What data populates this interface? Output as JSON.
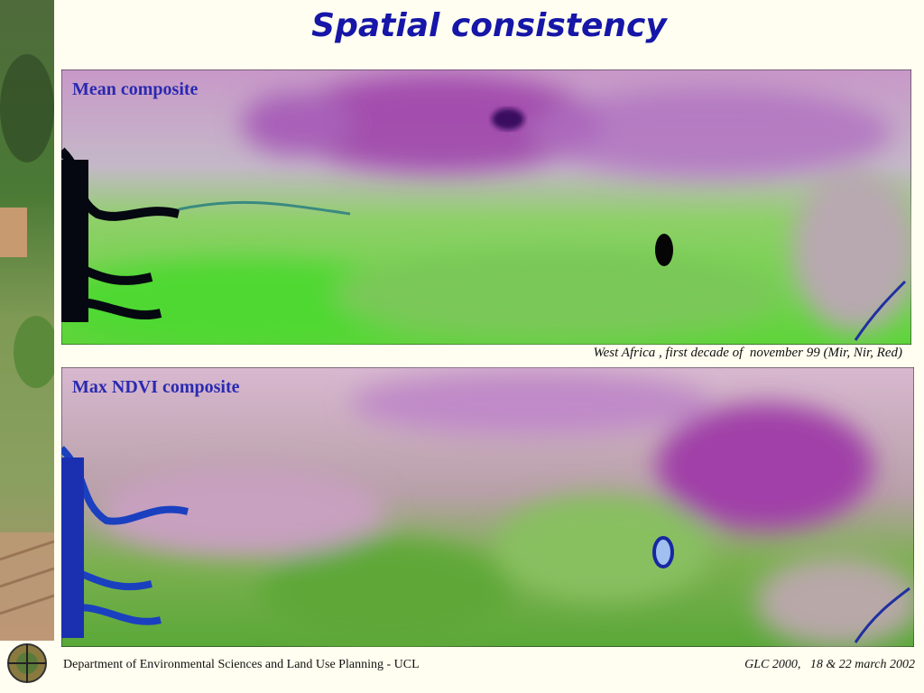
{
  "title": "Spatial consistency",
  "panels": [
    {
      "label": "Mean composite"
    },
    {
      "label": "Max NDVI composite"
    }
  ],
  "caption": "West Africa , first decade of  november 99 (Mir, Nir, Red)",
  "footer": {
    "left": "Department of Environmental Sciences and Land Use Planning - UCL",
    "right": "GLC 2000,   18 & 22 march 2002"
  }
}
